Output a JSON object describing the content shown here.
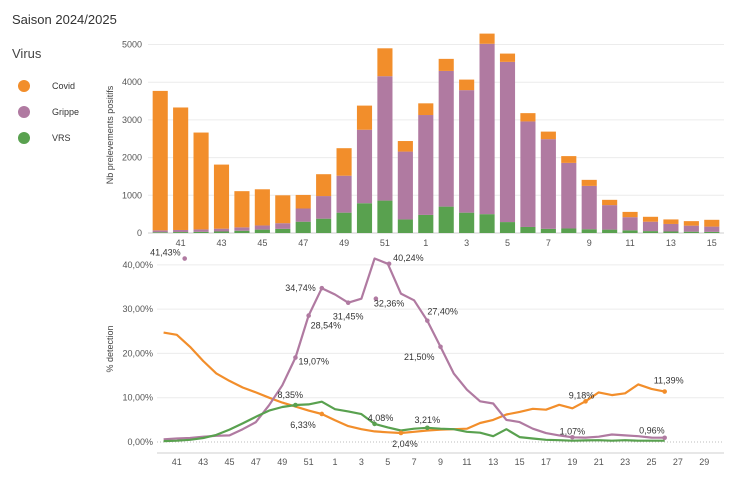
{
  "season_title": "Saison 2024/2025",
  "legend": {
    "title": "Virus",
    "items": [
      {
        "name": "Covid",
        "color": "#F28E2B"
      },
      {
        "name": "Grippe",
        "color": "#B07AA1"
      },
      {
        "name": "VRS",
        "color": "#59A14F"
      }
    ]
  },
  "chart_data": [
    {
      "type": "bar",
      "stacked": true,
      "ylabel": "Nb prelevements positifs",
      "ylim": [
        0,
        5200
      ],
      "yticks": [
        0,
        1000,
        2000,
        3000,
        4000,
        5000
      ],
      "ytick_labels": [
        "0",
        "1000",
        "2000",
        "3000",
        "4000",
        "5000"
      ],
      "x_tick_labels": [
        "41",
        "43",
        "45",
        "47",
        "49",
        "51",
        "1",
        "3",
        "5",
        "7",
        "9",
        "11",
        "13",
        "15"
      ],
      "categories": [
        "40",
        "41",
        "42",
        "43",
        "44",
        "45",
        "46",
        "47",
        "48",
        "49",
        "50",
        "51",
        "52",
        "1",
        "2",
        "3",
        "4",
        "5",
        "6",
        "7",
        "8",
        "9",
        "10",
        "11",
        "12",
        "13",
        "14",
        "15"
      ],
      "series": [
        {
          "name": "VRS",
          "values": [
            20,
            25,
            30,
            40,
            60,
            90,
            110,
            300,
            380,
            540,
            790,
            860,
            360,
            480,
            700,
            540,
            500,
            290,
            160,
            110,
            120,
            100,
            90,
            70,
            50,
            40,
            35,
            30
          ]
        },
        {
          "name": "Grippe",
          "values": [
            50,
            55,
            65,
            75,
            90,
            110,
            150,
            350,
            600,
            980,
            1950,
            3300,
            1800,
            2650,
            3600,
            3250,
            4520,
            4250,
            2800,
            2380,
            1740,
            1150,
            650,
            350,
            250,
            200,
            160,
            140
          ]
        },
        {
          "name": "Covid",
          "values": [
            3700,
            3250,
            2570,
            1700,
            960,
            960,
            740,
            360,
            580,
            730,
            640,
            740,
            280,
            310,
            320,
            280,
            270,
            220,
            220,
            200,
            180,
            160,
            140,
            140,
            130,
            120,
            120,
            180
          ]
        }
      ]
    },
    {
      "type": "line",
      "ylabel": "% detection",
      "ylim": [
        0,
        42
      ],
      "yticks": [
        0,
        10,
        20,
        30,
        40
      ],
      "ytick_labels": [
        "0,00%",
        "10,00%",
        "20,00%",
        "30,00%",
        "40,00%"
      ],
      "x_tick_labels": [
        "41",
        "43",
        "45",
        "47",
        "49",
        "51",
        "1",
        "3",
        "5",
        "7",
        "9",
        "11",
        "13",
        "15",
        "17",
        "19",
        "21",
        "23",
        "25",
        "27",
        "29"
      ],
      "x_tick_values": [
        41,
        43,
        45,
        47,
        49,
        51,
        53,
        55,
        57,
        59,
        61,
        63,
        65,
        67,
        69,
        71,
        73,
        75,
        77,
        79,
        81
      ],
      "series": [
        {
          "name": "Covid",
          "x": [
            40,
            41,
            42,
            43,
            44,
            45,
            46,
            47,
            48,
            49,
            50,
            51,
            52,
            53,
            54,
            55,
            56,
            57,
            58,
            59,
            60,
            61,
            62,
            63,
            64,
            65,
            66,
            67,
            68,
            69,
            70,
            71,
            72,
            73,
            74,
            75,
            76,
            77,
            78
          ],
          "values": [
            24.7,
            24.2,
            21.5,
            18.3,
            15.5,
            13.8,
            12.3,
            11.2,
            10.0,
            8.9,
            8.0,
            7.1,
            6.33,
            4.9,
            3.6,
            2.9,
            2.4,
            2.2,
            2.04,
            2.3,
            2.6,
            2.8,
            2.9,
            3.0,
            4.3,
            5.0,
            6.2,
            6.8,
            7.5,
            7.3,
            8.4,
            7.6,
            9.18,
            11.2,
            10.6,
            11.0,
            13.0,
            12.0,
            11.39
          ]
        },
        {
          "name": "Grippe",
          "x": [
            40,
            41,
            42,
            43,
            44,
            45,
            46,
            47,
            48,
            49,
            50,
            51,
            52,
            53,
            54,
            55,
            56,
            57,
            58,
            59,
            60,
            61,
            62,
            63,
            64,
            65,
            66,
            67,
            68,
            69,
            70,
            71,
            72,
            73,
            74,
            75,
            76,
            77,
            78
          ],
          "values": [
            0.6,
            0.8,
            0.9,
            1.2,
            1.4,
            1.5,
            2.9,
            4.5,
            8.3,
            12.8,
            19.07,
            28.54,
            34.74,
            33.3,
            31.45,
            32.36,
            41.43,
            40.24,
            33.5,
            32.0,
            27.4,
            21.5,
            15.5,
            11.8,
            9.2,
            8.7,
            5.0,
            4.5,
            3.0,
            2.0,
            1.5,
            1.07,
            1.0,
            1.2,
            1.7,
            1.5,
            1.3,
            1.0,
            0.96
          ]
        },
        {
          "name": "VRS",
          "x": [
            40,
            41,
            42,
            43,
            44,
            45,
            46,
            47,
            48,
            49,
            50,
            51,
            52,
            53,
            54,
            55,
            56,
            57,
            58,
            59,
            60,
            61,
            62,
            63,
            64,
            65,
            66,
            67,
            68,
            69,
            70,
            71,
            72,
            73,
            74,
            75,
            76,
            77,
            78
          ],
          "values": [
            0.2,
            0.3,
            0.5,
            0.9,
            1.6,
            2.8,
            4.2,
            5.7,
            7.1,
            7.9,
            8.35,
            8.5,
            9.1,
            7.4,
            6.9,
            6.3,
            4.08,
            3.3,
            2.6,
            3.0,
            3.21,
            3.0,
            2.9,
            2.3,
            2.1,
            1.3,
            2.9,
            1.1,
            0.8,
            0.5,
            0.4,
            0.3,
            0.35,
            0.4,
            0.3,
            0.4,
            0.3,
            0.3,
            0.3
          ]
        }
      ],
      "annotations": [
        {
          "series": "Grippe",
          "x": 41.6,
          "value": 41.43,
          "text": "41,43%"
        },
        {
          "series": "Grippe",
          "x": 57.1,
          "value": 40.24,
          "text": "40,24%"
        },
        {
          "series": "Grippe",
          "x": 52,
          "value": 34.74,
          "text": "34,74%"
        },
        {
          "series": "Grippe",
          "x": 56.1,
          "value": 32.36,
          "text": "32,36%"
        },
        {
          "series": "Grippe",
          "x": 54,
          "value": 31.45,
          "text": "31,45%"
        },
        {
          "series": "Grippe",
          "x": 51,
          "value": 28.54,
          "text": "28,54%"
        },
        {
          "series": "Grippe",
          "x": 60,
          "value": 27.4,
          "text": "27,40%"
        },
        {
          "series": "Grippe",
          "x": 61,
          "value": 21.5,
          "text": "21,50%"
        },
        {
          "series": "Grippe",
          "x": 50,
          "value": 19.07,
          "text": "19,07%"
        },
        {
          "series": "Covid",
          "x": 78,
          "value": 11.39,
          "text": "11,39%"
        },
        {
          "series": "Covid",
          "x": 72,
          "value": 9.18,
          "text": "9,18%"
        },
        {
          "series": "VRS",
          "x": 50,
          "value": 8.35,
          "text": "8,35%"
        },
        {
          "series": "Covid",
          "x": 52,
          "value": 6.33,
          "text": "6,33%"
        },
        {
          "series": "VRS",
          "x": 56,
          "value": 4.08,
          "text": "4,08%"
        },
        {
          "series": "VRS",
          "x": 60,
          "value": 3.21,
          "text": "3,21%"
        },
        {
          "series": "Covid",
          "x": 58,
          "value": 2.04,
          "text": "2,04%"
        },
        {
          "series": "Grippe",
          "x": 71,
          "value": 1.07,
          "text": "1,07%"
        },
        {
          "series": "Grippe",
          "x": 78,
          "value": 0.96,
          "text": "0,96%"
        }
      ]
    }
  ]
}
